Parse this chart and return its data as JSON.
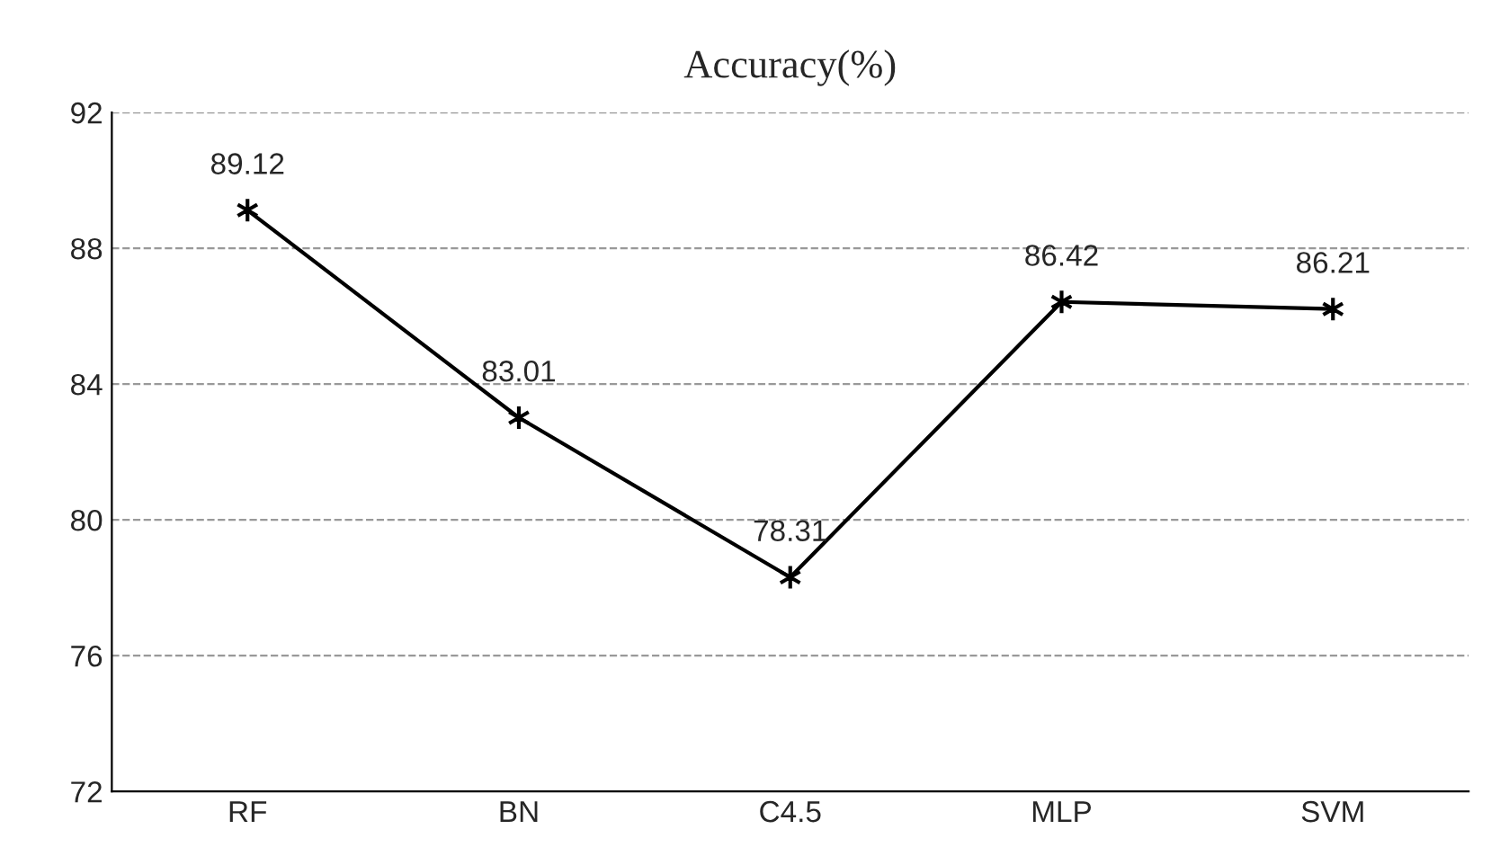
{
  "chart_data": {
    "type": "line",
    "title": "Accuracy(%)",
    "categories": [
      "RF",
      "BN",
      "C4.5",
      "MLP",
      "SVM"
    ],
    "series": [
      {
        "color": "#000000",
        "values": [
          89.12,
          83.01,
          78.31,
          86.42,
          86.21
        ]
      }
    ],
    "ylim": [
      72,
      92
    ],
    "yticks": [
      72,
      76,
      80,
      84,
      88,
      92
    ],
    "grid": "y",
    "marker": "cross",
    "line_style": "solid",
    "data_labels": true
  }
}
